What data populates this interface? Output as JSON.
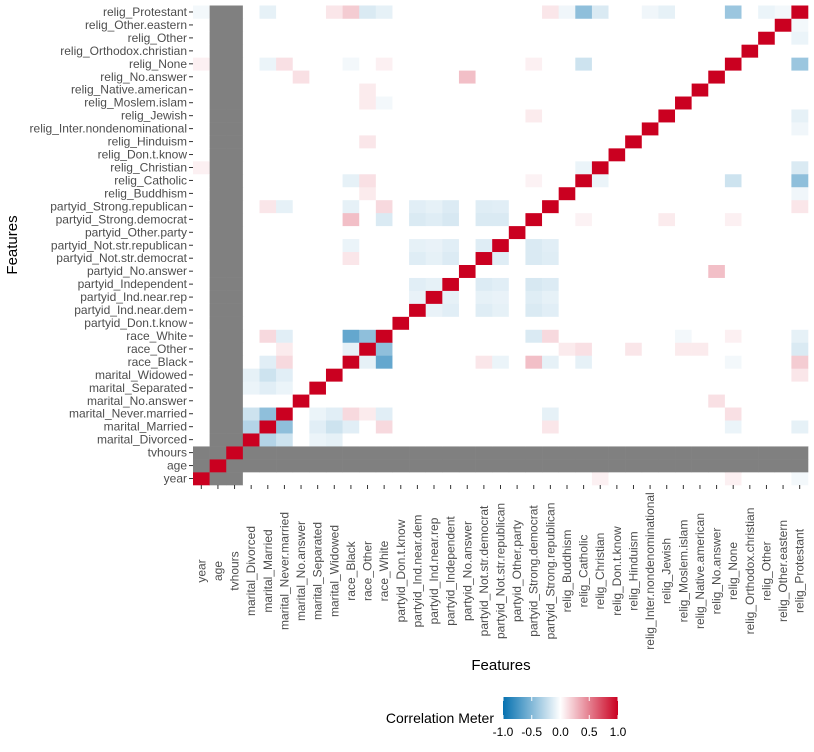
{
  "chart_data": {
    "type": "heatmap",
    "xlabel": "Features",
    "ylabel": "Features",
    "features": [
      "year",
      "age",
      "tvhours",
      "marital_Divorced",
      "marital_Married",
      "marital_Never.married",
      "marital_No.answer",
      "marital_Separated",
      "marital_Widowed",
      "race_Black",
      "race_Other",
      "race_White",
      "partyid_Don.t.know",
      "partyid_Ind.near.dem",
      "partyid_Ind.near.rep",
      "partyid_Independent",
      "partyid_No.answer",
      "partyid_Not.str.democrat",
      "partyid_Not.str.republican",
      "partyid_Other.party",
      "partyid_Strong.democrat",
      "partyid_Strong.republican",
      "relig_Buddhism",
      "relig_Catholic",
      "relig_Christian",
      "relig_Don.t.know",
      "relig_Hinduism",
      "relig_Inter.nondenominational",
      "relig_Jewish",
      "relig_Moslem.islam",
      "relig_Native.american",
      "relig_No.answer",
      "relig_None",
      "relig_Orthodox.christian",
      "relig_Other",
      "relig_Other.eastern",
      "relig_Protestant"
    ],
    "na_features": [
      "age",
      "tvhours"
    ],
    "default_value": 0,
    "pairs": [
      [
        "marital_Married",
        "marital_Never.married",
        -0.45
      ],
      [
        "marital_Divorced",
        "marital_Married",
        -0.3
      ],
      [
        "marital_Divorced",
        "marital_Never.married",
        -0.2
      ],
      [
        "marital_Married",
        "marital_Widowed",
        -0.2
      ],
      [
        "marital_Divorced",
        "marital_Widowed",
        -0.1
      ],
      [
        "marital_Never.married",
        "marital_Widowed",
        -0.12
      ],
      [
        "marital_Married",
        "marital_Separated",
        -0.12
      ],
      [
        "marital_Divorced",
        "marital_Separated",
        -0.08
      ],
      [
        "marital_Never.married",
        "marital_Separated",
        -0.08
      ],
      [
        "race_Black",
        "race_White",
        -0.62
      ],
      [
        "race_Other",
        "race_White",
        -0.45
      ],
      [
        "race_Black",
        "race_Other",
        -0.1
      ],
      [
        "marital_Married",
        "race_White",
        0.15
      ],
      [
        "marital_Never.married",
        "race_White",
        -0.12
      ],
      [
        "marital_Married",
        "race_Black",
        -0.12
      ],
      [
        "marital_Never.married",
        "race_Black",
        0.15
      ],
      [
        "marital_Never.married",
        "race_Other",
        0.08
      ],
      [
        "partyid_Strong.democrat",
        "race_Black",
        0.25
      ],
      [
        "partyid_Strong.democrat",
        "race_White",
        -0.15
      ],
      [
        "partyid_Strong.republican",
        "race_White",
        0.15
      ],
      [
        "partyid_Strong.republican",
        "race_Black",
        -0.1
      ],
      [
        "partyid_Strong.republican",
        "marital_Married",
        0.1
      ],
      [
        "partyid_Strong.republican",
        "marital_Never.married",
        -0.1
      ],
      [
        "partyid_Not.str.republican",
        "race_Black",
        -0.08
      ],
      [
        "partyid_Not.str.democrat",
        "race_Black",
        0.1
      ],
      [
        "partyid_Ind.near.dem",
        "partyid_Strong.democrat",
        -0.15
      ],
      [
        "partyid_Ind.near.rep",
        "partyid_Strong.democrat",
        -0.13
      ],
      [
        "partyid_Independent",
        "partyid_Strong.democrat",
        -0.16
      ],
      [
        "partyid_Not.str.democrat",
        "partyid_Strong.democrat",
        -0.15
      ],
      [
        "partyid_Not.str.republican",
        "partyid_Strong.democrat",
        -0.15
      ],
      [
        "partyid_Ind.near.dem",
        "partyid_Strong.republican",
        -0.12
      ],
      [
        "partyid_Ind.near.rep",
        "partyid_Strong.republican",
        -0.1
      ],
      [
        "partyid_Independent",
        "partyid_Strong.republican",
        -0.14
      ],
      [
        "partyid_Not.str.democrat",
        "partyid_Strong.republican",
        -0.13
      ],
      [
        "partyid_Not.str.republican",
        "partyid_Strong.republican",
        -0.12
      ],
      [
        "partyid_Ind.near.dem",
        "partyid_Not.str.democrat",
        -0.13
      ],
      [
        "partyid_Ind.near.rep",
        "partyid_Not.str.democrat",
        -0.1
      ],
      [
        "partyid_Independent",
        "partyid_Not.str.democrat",
        -0.14
      ],
      [
        "partyid_Not.str.democrat",
        "partyid_Not.str.republican",
        -0.13
      ],
      [
        "partyid_Ind.near.dem",
        "partyid_Not.str.republican",
        -0.1
      ],
      [
        "partyid_Ind.near.rep",
        "partyid_Not.str.republican",
        -0.09
      ],
      [
        "partyid_Independent",
        "partyid_Not.str.republican",
        -0.12
      ],
      [
        "partyid_Ind.near.dem",
        "partyid_Independent",
        -0.12
      ],
      [
        "partyid_Ind.near.rep",
        "partyid_Independent",
        -0.1
      ],
      [
        "partyid_Ind.near.dem",
        "partyid_Ind.near.rep",
        -0.09
      ],
      [
        "partyid_No.answer",
        "relig_No.answer",
        0.25
      ],
      [
        "marital_No.answer",
        "relig_No.answer",
        0.12
      ],
      [
        "relig_Catholic",
        "relig_Protestant",
        -0.45
      ],
      [
        "relig_None",
        "relig_Protestant",
        -0.4
      ],
      [
        "relig_Catholic",
        "relig_None",
        -0.2
      ],
      [
        "relig_Christian",
        "relig_Protestant",
        -0.15
      ],
      [
        "relig_Catholic",
        "relig_Christian",
        -0.08
      ],
      [
        "relig_Jewish",
        "relig_Protestant",
        -0.1
      ],
      [
        "relig_Inter.nondenominational",
        "relig_Protestant",
        -0.06
      ],
      [
        "relig_Other",
        "relig_Protestant",
        -0.08
      ],
      [
        "relig_Other.eastern",
        "relig_Protestant",
        -0.05
      ],
      [
        "relig_Buddhism",
        "relig_Protestant",
        -0.06
      ],
      [
        "race_Black",
        "relig_Protestant",
        0.2
      ],
      [
        "race_Other",
        "relig_Protestant",
        -0.15
      ],
      [
        "marital_Widowed",
        "relig_Protestant",
        0.1
      ],
      [
        "marital_Married",
        "relig_Protestant",
        -0.1
      ],
      [
        "race_Other",
        "relig_Catholic",
        0.12
      ],
      [
        "race_Black",
        "relig_Catholic",
        -0.1
      ],
      [
        "race_Black",
        "relig_None",
        -0.05
      ],
      [
        "marital_Never.married",
        "relig_None",
        0.12
      ],
      [
        "marital_Married",
        "relig_None",
        -0.08
      ],
      [
        "year",
        "relig_None",
        0.06
      ],
      [
        "year",
        "relig_Christian",
        0.06
      ],
      [
        "year",
        "relig_Protestant",
        -0.05
      ],
      [
        "race_Other",
        "relig_Native.american",
        0.08
      ],
      [
        "race_Other",
        "relig_Moslem.islam",
        0.08
      ],
      [
        "race_Other",
        "relig_Hinduism",
        0.1
      ],
      [
        "race_White",
        "relig_Moslem.islam",
        -0.05
      ],
      [
        "race_Other",
        "relig_Buddhism",
        0.08
      ],
      [
        "partyid_Strong.democrat",
        "relig_Jewish",
        0.08
      ],
      [
        "partyid_Strong.democrat",
        "relig_None",
        0.06
      ],
      [
        "partyid_Strong.republican",
        "relig_Protestant",
        0.1
      ],
      [
        "partyid_Strong.democrat",
        "relig_Catholic",
        0.05
      ],
      [
        "race_White",
        "relig_None",
        0.06
      ],
      [
        "race_White",
        "relig_Protestant",
        -0.1
      ]
    ],
    "legend": {
      "title": "Correlation Meter",
      "ticks": [
        "-1.0",
        "-0.5",
        "0.0",
        "0.5",
        "1.0"
      ],
      "range": [
        -1,
        1
      ],
      "low_color": "#0571B0",
      "mid_color": "#FFFFFF",
      "high_color": "#CA0020",
      "na_color": "#808080"
    }
  }
}
